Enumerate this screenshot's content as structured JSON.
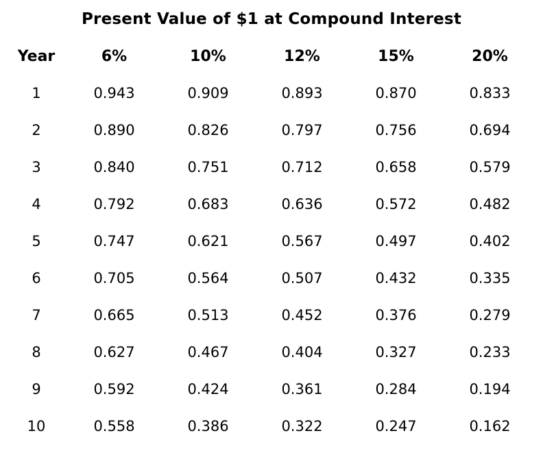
{
  "page_title": "Present Value of $1 at Compound Interest",
  "colors": {
    "background": "#ffffff",
    "text": "#000000"
  },
  "chart_data": {
    "type": "table",
    "title": "Present Value of $1 at Compound Interest",
    "columns": [
      "Year",
      "6%",
      "10%",
      "12%",
      "15%",
      "20%"
    ],
    "rows": [
      [
        "1",
        "0.943",
        "0.909",
        "0.893",
        "0.870",
        "0.833"
      ],
      [
        "2",
        "0.890",
        "0.826",
        "0.797",
        "0.756",
        "0.694"
      ],
      [
        "3",
        "0.840",
        "0.751",
        "0.712",
        "0.658",
        "0.579"
      ],
      [
        "4",
        "0.792",
        "0.683",
        "0.636",
        "0.572",
        "0.482"
      ],
      [
        "5",
        "0.747",
        "0.621",
        "0.567",
        "0.497",
        "0.402"
      ],
      [
        "6",
        "0.705",
        "0.564",
        "0.507",
        "0.432",
        "0.335"
      ],
      [
        "7",
        "0.665",
        "0.513",
        "0.452",
        "0.376",
        "0.279"
      ],
      [
        "8",
        "0.627",
        "0.467",
        "0.404",
        "0.327",
        "0.233"
      ],
      [
        "9",
        "0.592",
        "0.424",
        "0.361",
        "0.284",
        "0.194"
      ],
      [
        "10",
        "0.558",
        "0.386",
        "0.322",
        "0.247",
        "0.162"
      ]
    ]
  }
}
